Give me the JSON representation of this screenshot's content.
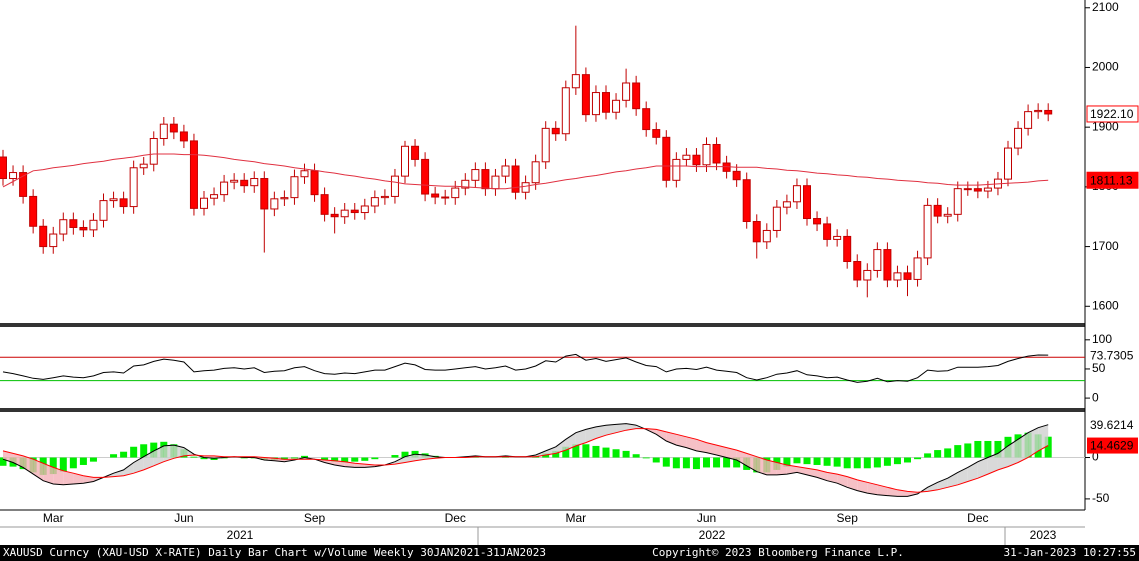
{
  "chart_data": [
    {
      "type": "candlestick",
      "categories": [
        null,
        null,
        null,
        null,
        null,
        "Mar",
        null,
        null,
        null,
        null,
        null,
        null,
        null,
        null,
        null,
        null,
        null,
        null,
        "Jun",
        null,
        null,
        null,
        null,
        null,
        null,
        null,
        null,
        null,
        null,
        null,
        null,
        "Sep",
        null,
        null,
        null,
        null,
        null,
        null,
        null,
        null,
        null,
        null,
        null,
        null,
        null,
        "Dec",
        null,
        null,
        null,
        null,
        null,
        null,
        null,
        null,
        null,
        null,
        null,
        "Mar",
        null,
        null,
        null,
        null,
        null,
        null,
        null,
        null,
        null,
        null,
        null,
        null,
        "Jun",
        null,
        null,
        null,
        null,
        null,
        null,
        null,
        null,
        null,
        null,
        null,
        null,
        null,
        "Sep",
        null,
        null,
        null,
        null,
        null,
        null,
        null,
        null,
        null,
        null,
        null,
        null,
        "Dec",
        null,
        null,
        null,
        null,
        null,
        null,
        null
      ],
      "years": [
        "2021",
        "2022",
        "2023"
      ],
      "open": [
        1850,
        1814,
        1824,
        1784,
        1734,
        1700,
        1721,
        1745,
        1732,
        1728,
        1744,
        1777,
        1780,
        1767,
        1832,
        1838,
        1881,
        1905,
        1892,
        1877,
        1764,
        1781,
        1787,
        1808,
        1811,
        1802,
        1814,
        1763,
        1780,
        1782,
        1817,
        1827,
        1787,
        1754,
        1750,
        1761,
        1757,
        1768,
        1782,
        1784,
        1818,
        1868,
        1846,
        1788,
        1783,
        1782,
        1798,
        1811,
        1829,
        1797,
        1818,
        1835,
        1791,
        1807,
        1842,
        1898,
        1889,
        1966,
        1988,
        1921,
        1958,
        1925,
        1945,
        1974,
        1931,
        1896,
        1883,
        1811,
        1846,
        1853,
        1837,
        1871,
        1840,
        1826,
        1812,
        1742,
        1708,
        1727,
        1766,
        1775,
        1802,
        1747,
        1738,
        1712,
        1717,
        1675,
        1644,
        1660,
        1695,
        1644,
        1656,
        1645,
        1681,
        1769,
        1751,
        1754,
        1797,
        1797,
        1793,
        1798,
        1813,
        1865,
        1898,
        1926,
        1928
      ],
      "high": [
        1862,
        1836,
        1836,
        1796,
        1746,
        1733,
        1757,
        1757,
        1744,
        1756,
        1789,
        1792,
        1792,
        1844,
        1850,
        1893,
        1917,
        1917,
        1904,
        1889,
        1793,
        1799,
        1820,
        1823,
        1823,
        1826,
        1826,
        1792,
        1794,
        1829,
        1839,
        1839,
        1799,
        1766,
        1773,
        1773,
        1780,
        1794,
        1796,
        1830,
        1877,
        1880,
        1858,
        1800,
        1795,
        1810,
        1823,
        1841,
        1841,
        1830,
        1847,
        1847,
        1819,
        1854,
        1910,
        1910,
        1978,
        2070,
        2000,
        1970,
        1970,
        1957,
        1998,
        1986,
        1943,
        1908,
        1895,
        1858,
        1865,
        1865,
        1883,
        1883,
        1852,
        1838,
        1824,
        1754,
        1739,
        1778,
        1787,
        1814,
        1814,
        1759,
        1750,
        1729,
        1729,
        1687,
        1672,
        1707,
        1707,
        1668,
        1668,
        1693,
        1781,
        1781,
        1766,
        1809,
        1809,
        1809,
        1810,
        1825,
        1877,
        1910,
        1938,
        1940,
        1940
      ],
      "low": [
        1802,
        1802,
        1772,
        1722,
        1688,
        1688,
        1709,
        1720,
        1716,
        1716,
        1732,
        1765,
        1755,
        1755,
        1820,
        1826,
        1869,
        1880,
        1865,
        1752,
        1752,
        1769,
        1775,
        1796,
        1790,
        1790,
        1690,
        1751,
        1768,
        1770,
        1805,
        1775,
        1742,
        1722,
        1738,
        1745,
        1745,
        1756,
        1770,
        1772,
        1806,
        1834,
        1776,
        1771,
        1770,
        1770,
        1786,
        1799,
        1785,
        1785,
        1806,
        1779,
        1779,
        1795,
        1830,
        1877,
        1877,
        1954,
        1909,
        1909,
        1913,
        1913,
        1933,
        1919,
        1884,
        1871,
        1799,
        1799,
        1834,
        1825,
        1825,
        1828,
        1814,
        1800,
        1730,
        1680,
        1696,
        1715,
        1754,
        1763,
        1735,
        1726,
        1700,
        1700,
        1663,
        1632,
        1615,
        1648,
        1632,
        1632,
        1617,
        1633,
        1669,
        1739,
        1739,
        1742,
        1785,
        1781,
        1781,
        1786,
        1801,
        1853,
        1886,
        1914,
        1910
      ],
      "close": [
        1814,
        1824,
        1784,
        1734,
        1700,
        1721,
        1745,
        1732,
        1728,
        1744,
        1777,
        1780,
        1767,
        1832,
        1838,
        1881,
        1905,
        1892,
        1877,
        1764,
        1781,
        1787,
        1808,
        1811,
        1802,
        1814,
        1763,
        1780,
        1782,
        1817,
        1827,
        1787,
        1754,
        1750,
        1761,
        1757,
        1768,
        1782,
        1784,
        1818,
        1868,
        1846,
        1788,
        1783,
        1782,
        1798,
        1811,
        1829,
        1797,
        1818,
        1835,
        1791,
        1807,
        1842,
        1898,
        1889,
        1966,
        1988,
        1921,
        1958,
        1925,
        1945,
        1974,
        1931,
        1896,
        1883,
        1811,
        1846,
        1853,
        1837,
        1871,
        1840,
        1826,
        1812,
        1742,
        1708,
        1727,
        1766,
        1775,
        1802,
        1747,
        1738,
        1712,
        1717,
        1675,
        1644,
        1660,
        1695,
        1644,
        1656,
        1645,
        1681,
        1769,
        1751,
        1754,
        1797,
        1797,
        1793,
        1798,
        1813,
        1865,
        1898,
        1926,
        1928,
        1922.1
      ],
      "close_label": "1922.10",
      "ma": [
        1800,
        1809,
        1818,
        1827,
        1829,
        1832,
        1834,
        1836,
        1839,
        1841,
        1843,
        1846,
        1848,
        1850,
        1853,
        1855,
        1855,
        1855,
        1854,
        1854,
        1853,
        1851,
        1849,
        1846,
        1844,
        1842,
        1839,
        1837,
        1835,
        1832,
        1830,
        1828,
        1825,
        1823,
        1820,
        1818,
        1815,
        1813,
        1810,
        1808,
        1805,
        1804,
        1803,
        1802,
        1801,
        1801,
        1800,
        1799,
        1798,
        1797,
        1797,
        1799,
        1801,
        1804,
        1806,
        1809,
        1812,
        1814,
        1817,
        1819,
        1822,
        1825,
        1827,
        1830,
        1832,
        1835,
        1835,
        1835,
        1835,
        1834,
        1834,
        1834,
        1834,
        1833,
        1833,
        1833,
        1831,
        1830,
        1828,
        1827,
        1825,
        1823,
        1822,
        1820,
        1819,
        1817,
        1816,
        1814,
        1813,
        1811,
        1810,
        1809,
        1807,
        1806,
        1804,
        1803,
        1803,
        1803,
        1804,
        1805,
        1806,
        1807,
        1808,
        1810,
        1811.13
      ],
      "up_color": "#ffffff",
      "down_color": "#ff0000",
      "edge_color": "#c00000",
      "ma_color": "#e03040",
      "ylim": [
        1572,
        2113
      ],
      "yticks": [
        1600,
        1700,
        1800,
        1900,
        2000,
        2100
      ]
    },
    {
      "type": "line",
      "series": [
        {
          "color": "#000000",
          "values": [
            45,
            42,
            38,
            34,
            32,
            35,
            38,
            36,
            35,
            38,
            44,
            45,
            43,
            55,
            57,
            63,
            67,
            65,
            62,
            45,
            47,
            48,
            51,
            52,
            50,
            52,
            44,
            46,
            47,
            52,
            54,
            47,
            42,
            41,
            43,
            42,
            45,
            48,
            48,
            54,
            60,
            57,
            49,
            48,
            48,
            50,
            52,
            54,
            50,
            52,
            55,
            48,
            50,
            55,
            64,
            62,
            72,
            75,
            65,
            68,
            63,
            66,
            69,
            62,
            56,
            54,
            45,
            50,
            51,
            49,
            53,
            48,
            46,
            44,
            35,
            31,
            35,
            41,
            43,
            47,
            40,
            38,
            35,
            36,
            31,
            27,
            29,
            34,
            28,
            30,
            29,
            35,
            48,
            46,
            47,
            53,
            53,
            53,
            54,
            56,
            63,
            68,
            72,
            74,
            73.7305
          ]
        }
      ],
      "reference_lines": [
        {
          "value": 70,
          "color": "#cc0000"
        },
        {
          "value": 30,
          "color": "#00c000"
        }
      ],
      "ylim": [
        -17,
        122
      ],
      "yticks": [
        0,
        50,
        100
      ]
    },
    {
      "type": "macd",
      "series": [
        {
          "color": "#000000",
          "values": [
            -2,
            -6,
            -12,
            -20,
            -28,
            -32,
            -33,
            -32,
            -31,
            -29,
            -24,
            -19,
            -15,
            -6,
            1,
            8,
            14,
            15,
            12,
            4,
            0,
            -1,
            0,
            1,
            0,
            0,
            -3,
            -4,
            -5,
            -3,
            0,
            -2,
            -6,
            -9,
            -11,
            -12,
            -12,
            -11,
            -9,
            -5,
            1,
            4,
            3,
            1,
            0,
            0,
            1,
            2,
            1,
            1,
            2,
            1,
            1,
            3,
            8,
            13,
            22,
            30,
            34,
            37,
            39,
            40,
            41,
            39,
            34,
            28,
            20,
            15,
            12,
            8,
            6,
            3,
            0,
            -3,
            -10,
            -17,
            -21,
            -21,
            -20,
            -18,
            -21,
            -24,
            -28,
            -31,
            -36,
            -40,
            -43,
            -45,
            -46,
            -47,
            -47,
            -44,
            -36,
            -30,
            -25,
            -18,
            -12,
            -5,
            0,
            5,
            14,
            22,
            30,
            36,
            39.6214
          ]
        },
        {
          "color": "#ff0000",
          "values": [
            8,
            5,
            2,
            -2,
            -7,
            -12,
            -16,
            -19,
            -22,
            -24,
            -24,
            -23,
            -22,
            -19,
            -15,
            -10,
            -5,
            -1,
            2,
            3,
            2,
            2,
            1,
            1,
            1,
            1,
            0,
            -1,
            -2,
            -2,
            -2,
            -2,
            -3,
            -4,
            -5,
            -7,
            -8,
            -9,
            -9,
            -8,
            -6,
            -4,
            -2,
            -1,
            0,
            0,
            0,
            1,
            1,
            1,
            1,
            1,
            1,
            1,
            3,
            5,
            9,
            14,
            18,
            23,
            27,
            30,
            33,
            35,
            35,
            34,
            31,
            28,
            25,
            22,
            18,
            15,
            12,
            9,
            5,
            1,
            -3,
            -6,
            -9,
            -11,
            -13,
            -15,
            -18,
            -20,
            -23,
            -27,
            -30,
            -33,
            -36,
            -39,
            -41,
            -42,
            -41,
            -39,
            -36,
            -33,
            -29,
            -25,
            -20,
            -15,
            -11,
            -6,
            0,
            8,
            14.4629
          ]
        },
        {
          "color": "#00ee00",
          "values": [
            -10,
            -11,
            -14,
            -18,
            -21,
            -20,
            -17,
            -13,
            -9,
            -5,
            0,
            4,
            7,
            13,
            16,
            18,
            19,
            16,
            10,
            1,
            -2,
            -3,
            -1,
            0,
            -1,
            -1,
            -3,
            -3,
            -3,
            -1,
            2,
            0,
            -3,
            -5,
            -6,
            -5,
            -4,
            -2,
            0,
            3,
            7,
            8,
            5,
            2,
            0,
            0,
            1,
            1,
            0,
            0,
            1,
            0,
            0,
            2,
            5,
            8,
            13,
            16,
            16,
            14,
            12,
            10,
            8,
            4,
            -1,
            -6,
            -11,
            -13,
            -13,
            -14,
            -12,
            -12,
            -12,
            -12,
            -15,
            -18,
            -18,
            -15,
            -11,
            -7,
            -8,
            -9,
            -10,
            -11,
            -13,
            -13,
            -13,
            -12,
            -10,
            -8,
            -6,
            -2,
            5,
            9,
            11,
            15,
            17,
            20,
            20,
            20,
            25,
            28,
            30,
            28,
            25.1585
          ]
        }
      ],
      "ylim": [
        -61,
        55
      ],
      "yticks": [
        -50,
        0
      ]
    }
  ],
  "footer": {
    "left": "XAUUSD Curncy (XAU-USD X-RATE) Daily Bar Chart w/Volume  Weekly 30JAN2021-31JAN2023",
    "center": "Copyright© 2023 Bloomberg Finance L.P.",
    "right": "31-Jan-2023 10:27:55"
  }
}
